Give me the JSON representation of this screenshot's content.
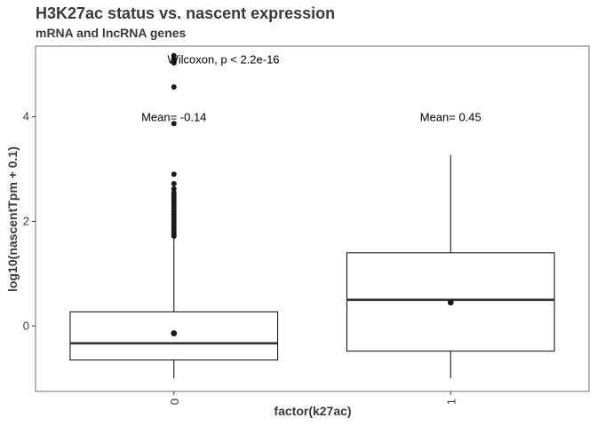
{
  "chart_data": {
    "type": "boxplot",
    "title": "H3K27ac status vs. nascent expression",
    "subtitle": "mRNA and lncRNA genes",
    "xlabel": "factor(k27ac)",
    "ylabel": "log10(nascentTpm + 0.1)",
    "categories": [
      "0",
      "1"
    ],
    "ylim": [
      -1.25,
      5.35
    ],
    "yticks": [
      0,
      2,
      4
    ],
    "x_tick_label_rotation": "vertical",
    "grid": false,
    "boxes": [
      {
        "category": "0",
        "whisker_low": -1.0,
        "q1": -0.65,
        "median": -0.33,
        "q3": 0.27,
        "whisker_high": 1.7,
        "mean": -0.14,
        "outliers": [
          1.72,
          1.76,
          1.8,
          1.85,
          1.9,
          1.95,
          2.0,
          2.05,
          2.1,
          2.15,
          2.2,
          2.25,
          2.3,
          2.35,
          2.4,
          2.45,
          2.5,
          2.55,
          2.62,
          2.72,
          2.9,
          3.87,
          4.57,
          5.03,
          5.1,
          5.17
        ]
      },
      {
        "category": "1",
        "whisker_low": -1.0,
        "q1": -0.48,
        "median": 0.5,
        "q3": 1.4,
        "whisker_high": 3.27,
        "mean": 0.45,
        "outliers": []
      }
    ],
    "annotations": {
      "test": "Wilcoxon, p < 2.2e-16",
      "mean_labels": [
        "Mean= -0.14",
        "Mean= 0.45"
      ]
    },
    "colors": {
      "box_fill": "#ffffff",
      "box_line": "#1a1a1a",
      "median_line": "#333333",
      "points": "#1a1a1a",
      "panel_border": "#6e6e6e",
      "text": "#3a3a3a"
    }
  }
}
